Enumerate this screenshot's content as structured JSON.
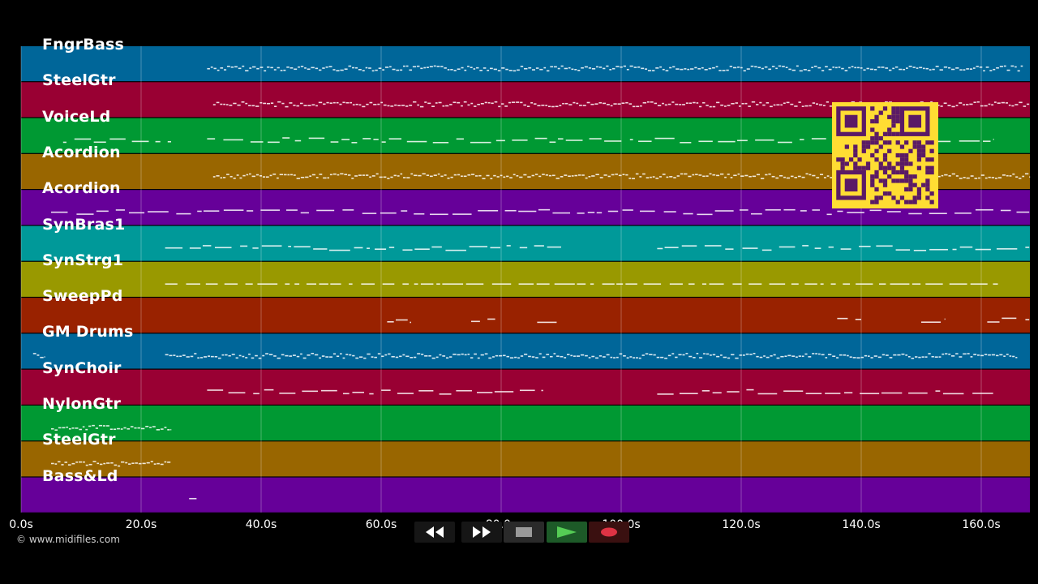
{
  "tracks": [
    {
      "name": "FngrBass",
      "color": "#006699"
    },
    {
      "name": "SteelGtr",
      "color": "#990033"
    },
    {
      "name": "VoiceLd",
      "color": "#009933"
    },
    {
      "name": "Acordion",
      "color": "#996600"
    },
    {
      "name": "Acordion",
      "color": "#660099"
    },
    {
      "name": "SynBras1",
      "color": "#009999"
    },
    {
      "name": "SynStrg1",
      "color": "#999900"
    },
    {
      "name": "SweepPd",
      "color": "#992200"
    },
    {
      "name": "GM Drums",
      "color": "#006699"
    },
    {
      "name": "SynChoir",
      "color": "#990033"
    },
    {
      "name": "NylonGtr",
      "color": "#009933"
    },
    {
      "name": "SteelGtr",
      "color": "#996600"
    },
    {
      "name": "Bass&Ld",
      "color": "#660099"
    }
  ],
  "timeline": {
    "unit": "s",
    "ticks": [
      "0.0s",
      "20.0s",
      "40.0s",
      "60.0s",
      "80.0s",
      "100.0s",
      "120.0s",
      "140.0s",
      "160.0s"
    ]
  },
  "copyright": "© www.midifiles.com",
  "transport": {
    "rewind_icon": "rewind-icon",
    "fast_forward_icon": "fast-forward-icon",
    "stop_icon": "stop-icon",
    "play_icon": "play-icon",
    "record_icon": "record-icon"
  },
  "colors": {
    "background": "#000000",
    "note": "#ffffff",
    "qr_bg": "#ffdd33",
    "qr_fg": "#5a1a66"
  }
}
